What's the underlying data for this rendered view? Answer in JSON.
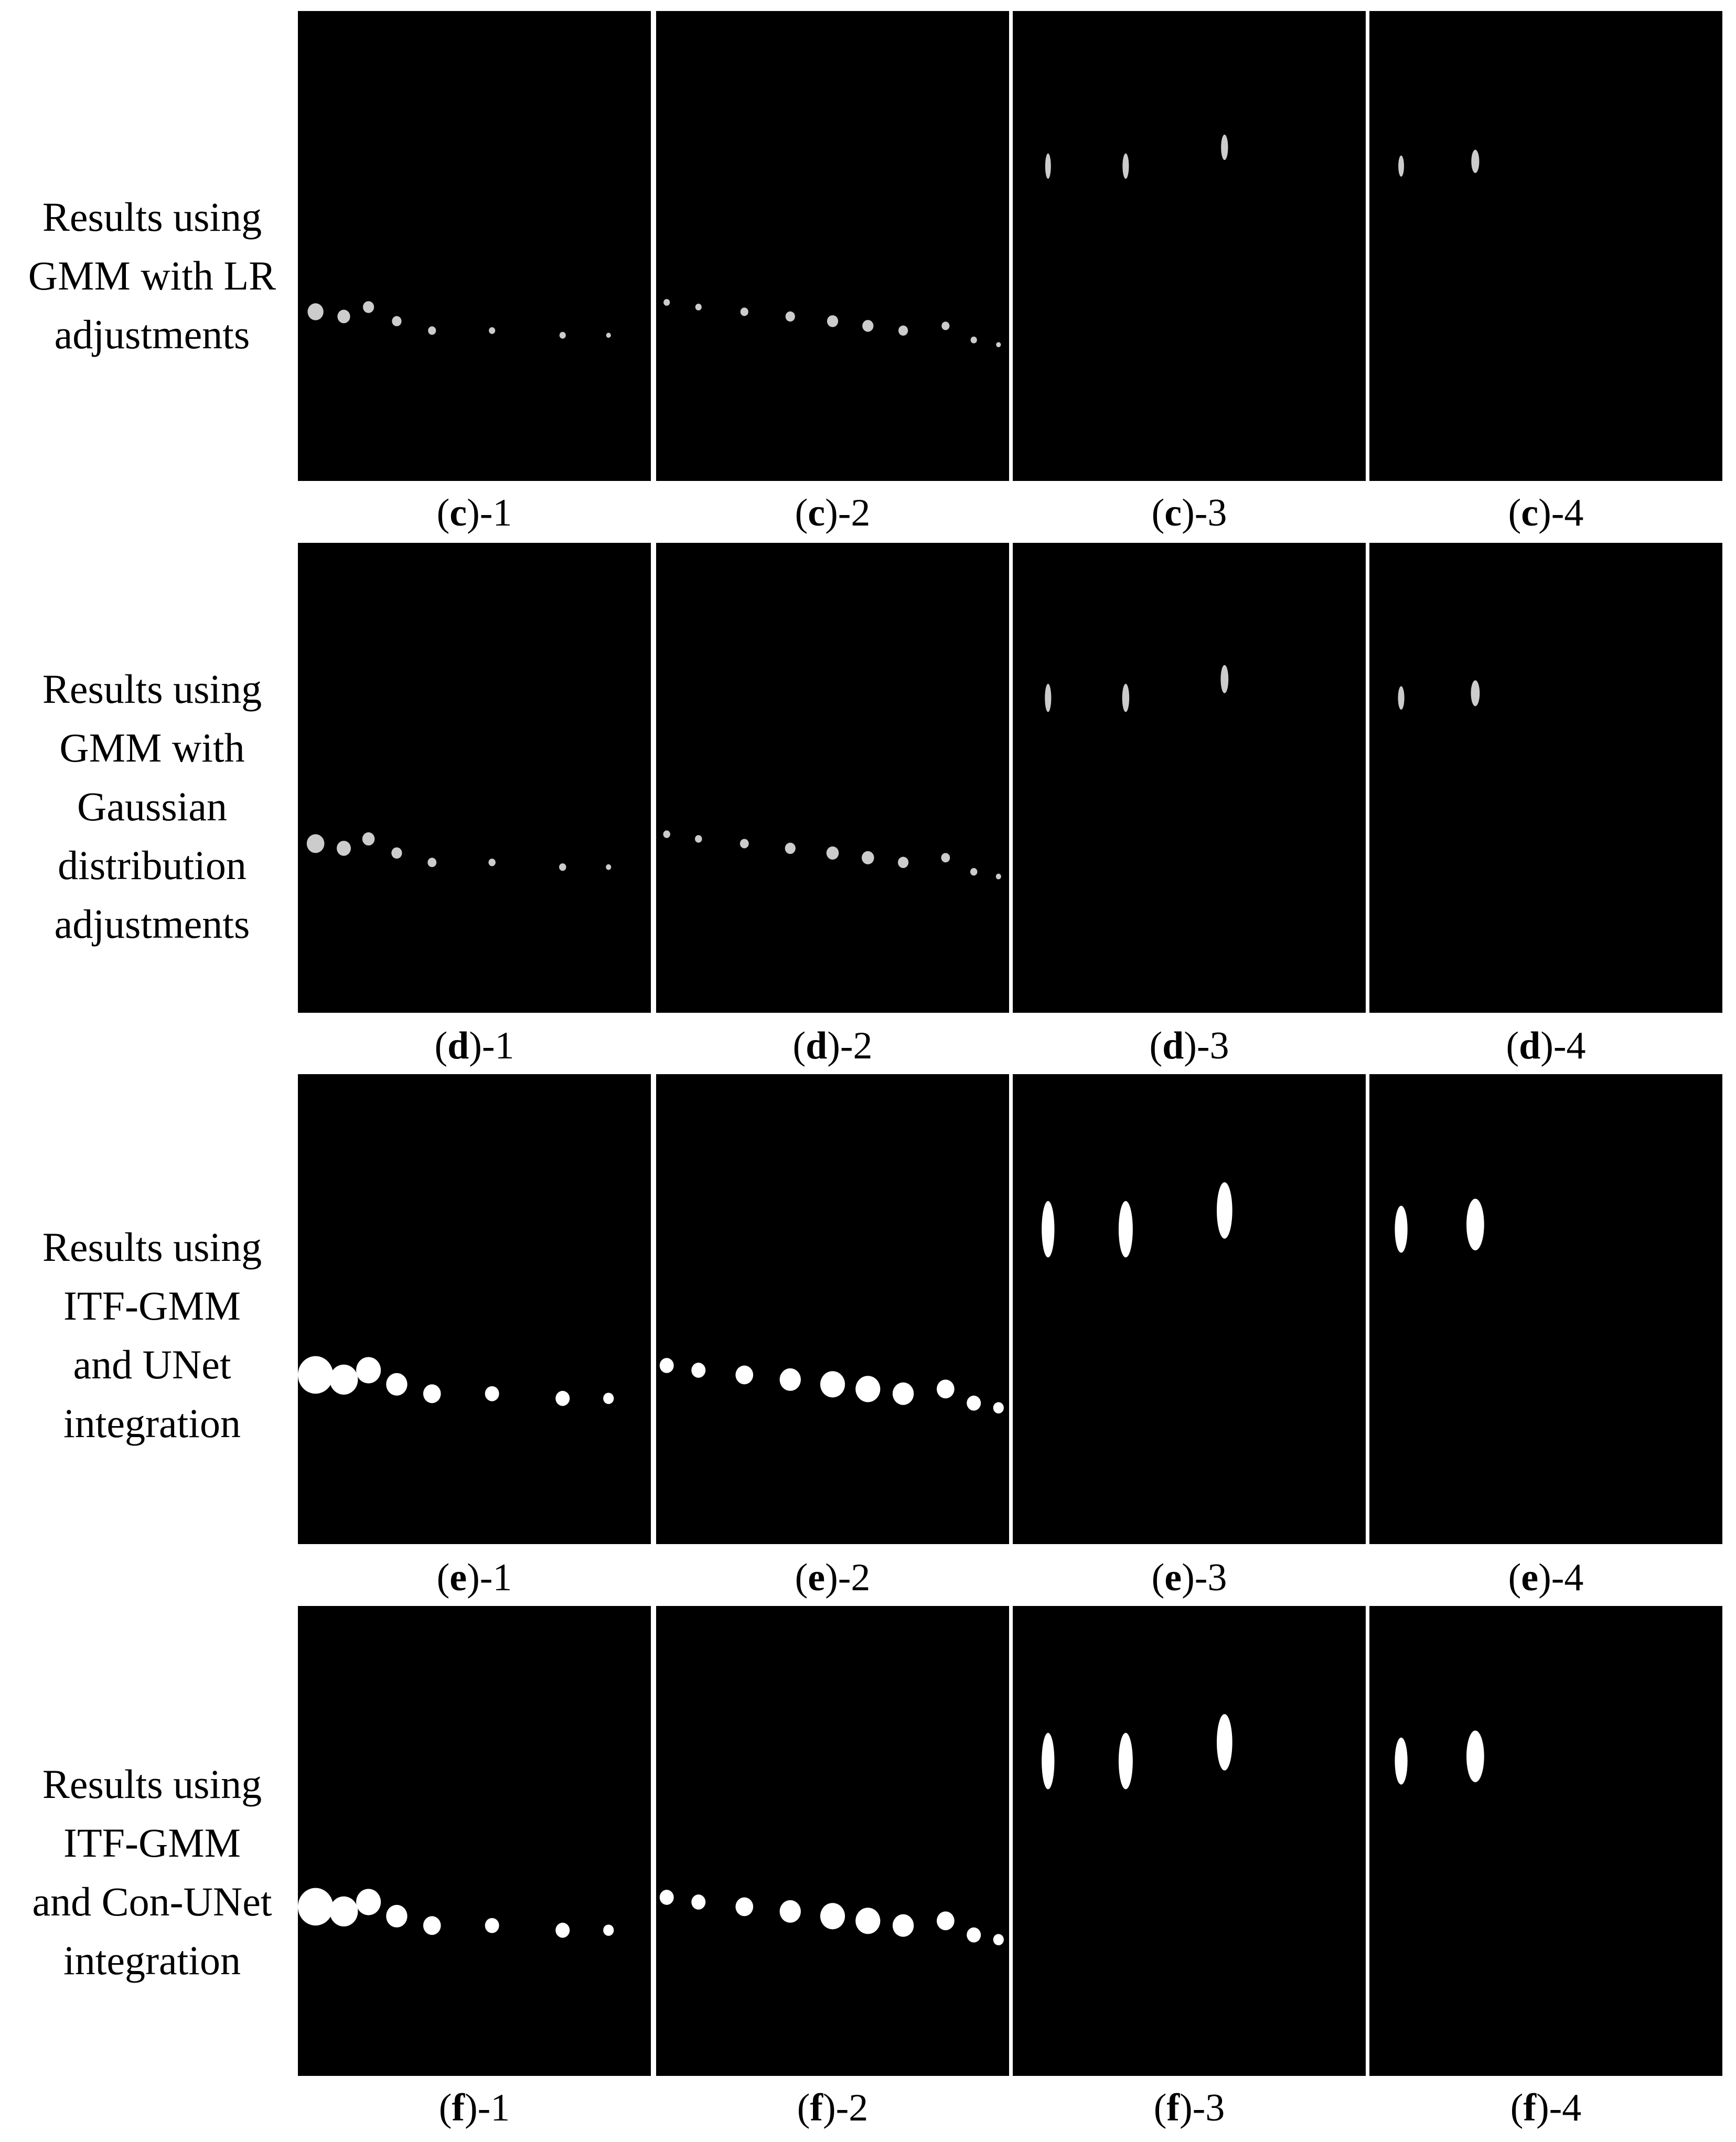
{
  "rows": [
    {
      "label_lines": [
        "Results using",
        "GMM with LR",
        "adjustments"
      ],
      "captions": [
        {
          "open": "(",
          "letter": "c",
          "close": ")-1"
        },
        {
          "open": "(",
          "letter": "c",
          "close": ")-2"
        },
        {
          "open": "(",
          "letter": "c",
          "close": ")-3"
        },
        {
          "open": "(",
          "letter": "c",
          "close": ")-4"
        }
      ]
    },
    {
      "label_lines": [
        "Results using",
        "GMM with",
        "Gaussian",
        "distribution",
        "adjustments"
      ],
      "captions": [
        {
          "open": "(",
          "letter": "d",
          "close": ")-1"
        },
        {
          "open": "(",
          "letter": "d",
          "close": ")-2"
        },
        {
          "open": "(",
          "letter": "d",
          "close": ")-3"
        },
        {
          "open": "(",
          "letter": "d",
          "close": ")-4"
        }
      ]
    },
    {
      "label_lines": [
        "Results using",
        "ITF-GMM",
        "and UNet",
        "integration"
      ],
      "captions": [
        {
          "open": "(",
          "letter": "e",
          "close": ")-1"
        },
        {
          "open": "(",
          "letter": "e",
          "close": ")-2"
        },
        {
          "open": "(",
          "letter": "e",
          "close": ")-3"
        },
        {
          "open": "(",
          "letter": "e",
          "close": ")-4"
        }
      ]
    },
    {
      "label_lines": [
        "Results using",
        "ITF-GMM",
        "and Con-UNet",
        "integration"
      ],
      "captions": [
        {
          "open": "(",
          "letter": "f",
          "close": ")-1"
        },
        {
          "open": "(",
          "letter": "f",
          "close": ")-2"
        },
        {
          "open": "(",
          "letter": "f",
          "close": ")-3"
        },
        {
          "open": "(",
          "letter": "f",
          "close": ")-4"
        }
      ]
    }
  ]
}
